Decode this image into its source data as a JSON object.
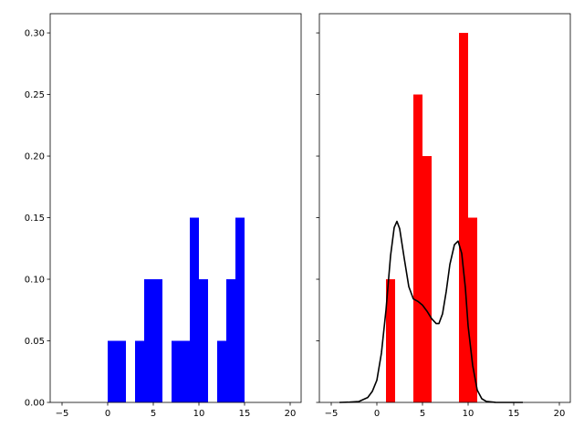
{
  "chart_data": [
    {
      "type": "bar",
      "title": "",
      "xlabel": "",
      "ylabel": "",
      "xlim": [
        -6.3,
        21.2
      ],
      "ylim": [
        0,
        0.3156
      ],
      "xticks": [
        -5,
        0,
        5,
        10,
        15,
        20
      ],
      "yticks": [
        "0.00",
        "0.05",
        "0.10",
        "0.15",
        "0.20",
        "0.25",
        "0.30"
      ],
      "bar_color": "#0000ff",
      "bin_width": 1,
      "bins": [
        {
          "x": 0,
          "value": 0.05
        },
        {
          "x": 1,
          "value": 0.05
        },
        {
          "x": 3,
          "value": 0.05
        },
        {
          "x": 4,
          "value": 0.1
        },
        {
          "x": 5,
          "value": 0.1
        },
        {
          "x": 7,
          "value": 0.05
        },
        {
          "x": 8,
          "value": 0.05
        },
        {
          "x": 9,
          "value": 0.15
        },
        {
          "x": 10,
          "value": 0.1
        },
        {
          "x": 12,
          "value": 0.05
        },
        {
          "x": 13,
          "value": 0.1
        },
        {
          "x": 14,
          "value": 0.15
        }
      ],
      "grid": false
    },
    {
      "type": "bar",
      "title": "",
      "xlabel": "",
      "ylabel": "",
      "xlim": [
        -6.3,
        21.2
      ],
      "ylim": [
        0,
        0.3156
      ],
      "xticks": [
        -5,
        0,
        5,
        10,
        15,
        20
      ],
      "sharey": true,
      "bar_color": "#ff0000",
      "bin_width": 1,
      "bins": [
        {
          "x": 1,
          "value": 0.1
        },
        {
          "x": 4,
          "value": 0.25
        },
        {
          "x": 5,
          "value": 0.2
        },
        {
          "x": 9,
          "value": 0.3
        },
        {
          "x": 10,
          "value": 0.15
        }
      ],
      "line_color": "#000000",
      "kde_line": [
        [
          -4.1,
          0
        ],
        [
          -3,
          0.0002
        ],
        [
          -2,
          0.0007
        ],
        [
          -1,
          0.004
        ],
        [
          -0.5,
          0.009
        ],
        [
          0,
          0.018
        ],
        [
          0.5,
          0.04
        ],
        [
          1,
          0.075
        ],
        [
          1.5,
          0.119
        ],
        [
          1.9,
          0.142
        ],
        [
          2.2,
          0.147
        ],
        [
          2.5,
          0.141
        ],
        [
          3,
          0.117
        ],
        [
          3.5,
          0.094
        ],
        [
          4,
          0.084
        ],
        [
          4.5,
          0.082
        ],
        [
          5,
          0.079
        ],
        [
          5.5,
          0.074
        ],
        [
          6,
          0.068
        ],
        [
          6.5,
          0.064
        ],
        [
          6.8,
          0.064
        ],
        [
          7.2,
          0.072
        ],
        [
          7.6,
          0.09
        ],
        [
          8,
          0.112
        ],
        [
          8.5,
          0.128
        ],
        [
          8.9,
          0.131
        ],
        [
          9.3,
          0.121
        ],
        [
          9.7,
          0.093
        ],
        [
          10,
          0.062
        ],
        [
          10.5,
          0.03
        ],
        [
          11,
          0.01
        ],
        [
          11.5,
          0.003
        ],
        [
          12,
          0.0008
        ],
        [
          13,
          0.0001
        ],
        [
          14,
          0
        ],
        [
          16,
          0
        ]
      ],
      "grid": false
    }
  ]
}
